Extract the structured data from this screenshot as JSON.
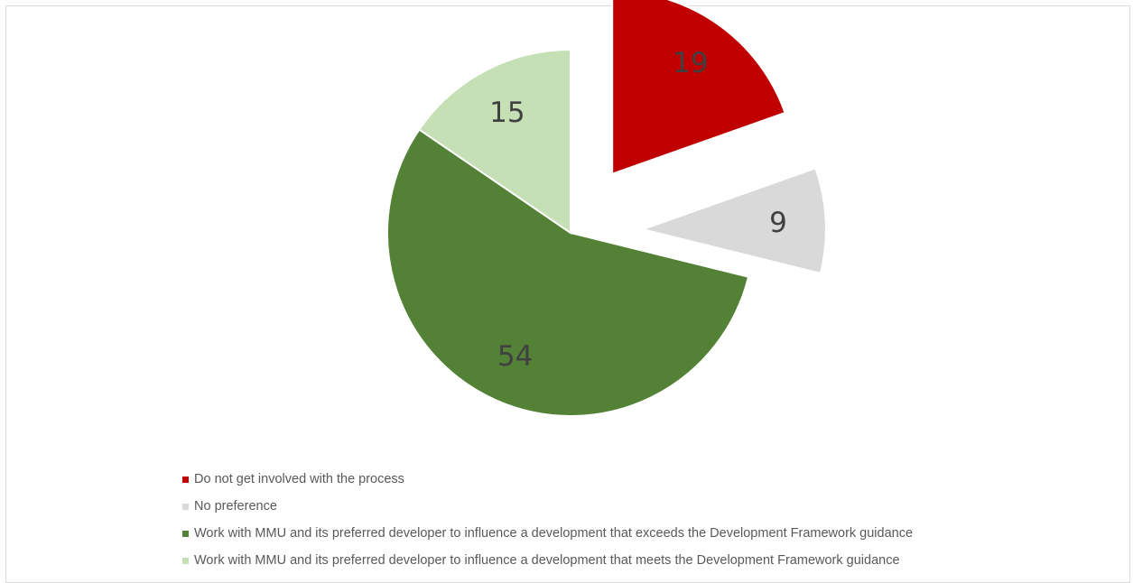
{
  "chart_data": {
    "type": "pie",
    "title": "",
    "categories": [
      "Do not get involved with the process",
      "No preference",
      "Work with MMU and its preferred developer to influence a development that exceeds the Development Framework guidance",
      "Work with MMU and its preferred developer to influence a development that meets the Development Framework guidance"
    ],
    "values": [
      19,
      9,
      54,
      15
    ],
    "colors": [
      "#c00000",
      "#d9d9d9",
      "#538135",
      "#c5e0b4"
    ],
    "exploded": [
      true,
      true,
      false,
      false
    ],
    "legend_position": "bottom-left",
    "data_labels": [
      "19",
      "9",
      "54",
      "15"
    ]
  }
}
